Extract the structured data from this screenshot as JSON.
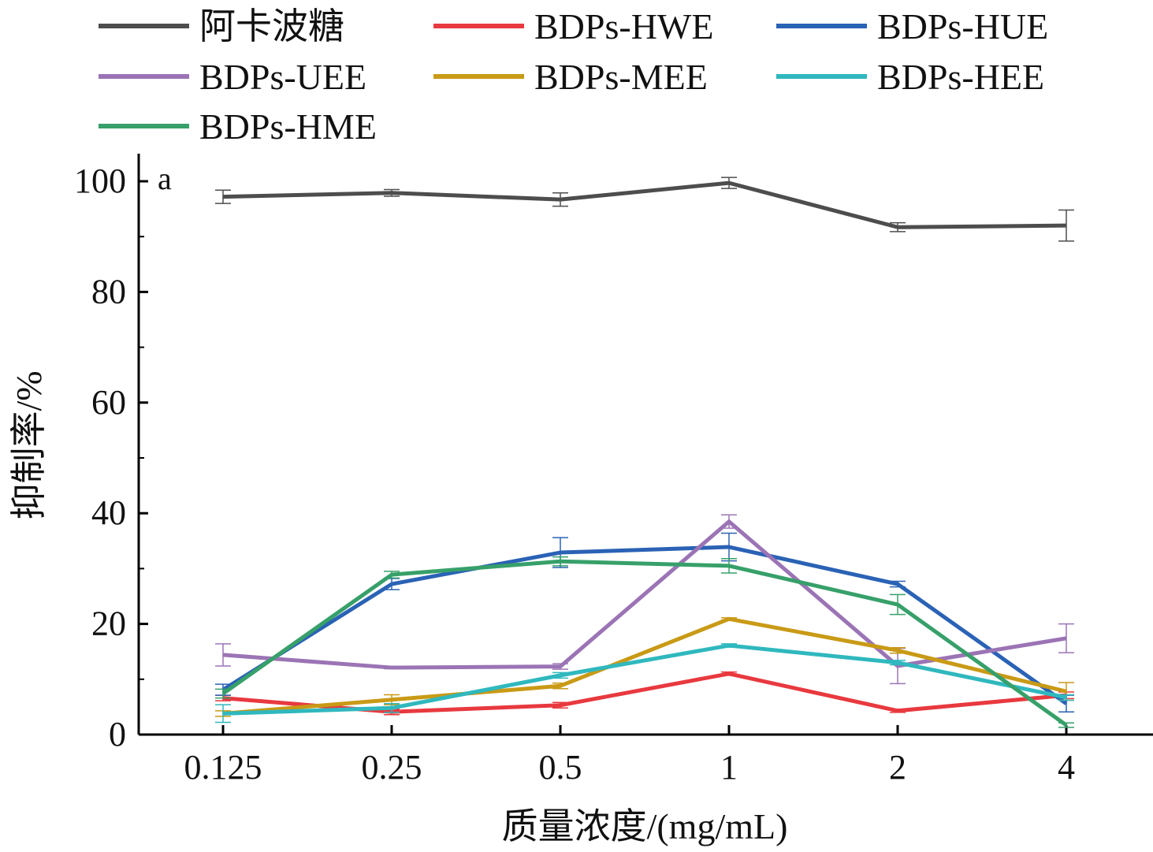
{
  "chart_data": {
    "type": "line",
    "panel_label": "a",
    "xlabel": "质量浓度/(mg/mL)",
    "ylabel": "抑制率/%",
    "categories": [
      "0.125",
      "0.25",
      "0.5",
      "1",
      "2",
      "4"
    ],
    "ylim": [
      0,
      105
    ],
    "yticks": [
      "0",
      "20",
      "40",
      "60",
      "80",
      "100"
    ],
    "grid": false,
    "legend_position": "top",
    "series": [
      {
        "name": "阿卡波糖",
        "color": "#4d4d4d",
        "values": [
          97.2,
          97.9,
          96.7,
          99.7,
          91.7,
          92.0
        ],
        "errors": [
          1.2,
          0.6,
          1.2,
          1.0,
          0.8,
          2.8
        ]
      },
      {
        "name": "BDPs-HWE",
        "color": "#e8393f",
        "values": [
          6.6,
          4.1,
          5.3,
          11.0,
          4.3,
          7.1
        ],
        "errors": [
          0.5,
          0.5,
          0.5,
          0.3,
          0.3,
          0.6
        ]
      },
      {
        "name": "BDPs-HUE",
        "color": "#2a62b5",
        "values": [
          8.1,
          27.2,
          32.9,
          33.9,
          27.2,
          5.6
        ],
        "errors": [
          1.0,
          1.0,
          2.7,
          2.5,
          0.5,
          1.5
        ]
      },
      {
        "name": "BDPs-UEE",
        "color": "#9b74b5",
        "values": [
          14.4,
          12.1,
          12.3,
          38.5,
          12.4,
          17.4
        ],
        "errors": [
          2.0,
          0.2,
          0.5,
          1.2,
          3.2,
          2.6
        ]
      },
      {
        "name": "BDPs-MEE",
        "color": "#c99a16",
        "values": [
          3.8,
          6.3,
          8.8,
          20.9,
          15.2,
          7.8
        ],
        "errors": [
          0.5,
          0.9,
          0.5,
          0.2,
          0.5,
          1.6
        ]
      },
      {
        "name": "BDPs-HEE",
        "color": "#2fb8be",
        "values": [
          3.8,
          4.8,
          10.7,
          16.1,
          13.0,
          6.7
        ],
        "errors": [
          1.6,
          0.8,
          0.5,
          0.3,
          0.4,
          0.5
        ]
      },
      {
        "name": "BDPs-HME",
        "color": "#37a06a",
        "values": [
          7.4,
          28.9,
          31.3,
          30.5,
          23.5,
          1.7
        ],
        "errors": [
          0.8,
          0.6,
          0.8,
          1.3,
          1.8,
          0.4
        ]
      }
    ]
  }
}
